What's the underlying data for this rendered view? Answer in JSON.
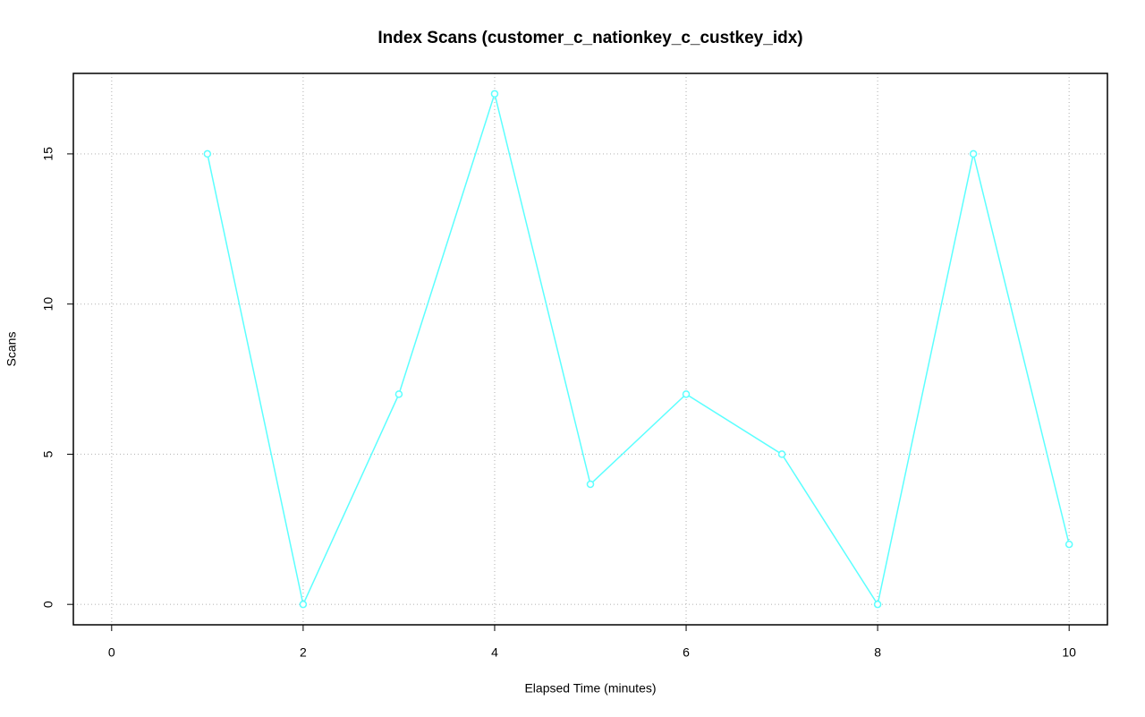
{
  "chart_data": {
    "type": "line",
    "title": "Index Scans (customer_c_nationkey_c_custkey_idx)",
    "x_label": "Elapsed Time (minutes)",
    "y_label": "Scans",
    "x": [
      1,
      2,
      3,
      4,
      5,
      6,
      7,
      8,
      9,
      10
    ],
    "series": [
      {
        "name": "Scans",
        "color": "#5cffff",
        "values": [
          15,
          0,
          7,
          17,
          4,
          7,
          5,
          0,
          15,
          2
        ]
      }
    ],
    "xlim": [
      -0.4,
      10.4
    ],
    "ylim": [
      -0.68,
      17.68
    ],
    "xticks": [
      0,
      2,
      4,
      6,
      8,
      10
    ],
    "yticks": [
      0,
      5,
      10,
      15
    ],
    "grid": true
  }
}
